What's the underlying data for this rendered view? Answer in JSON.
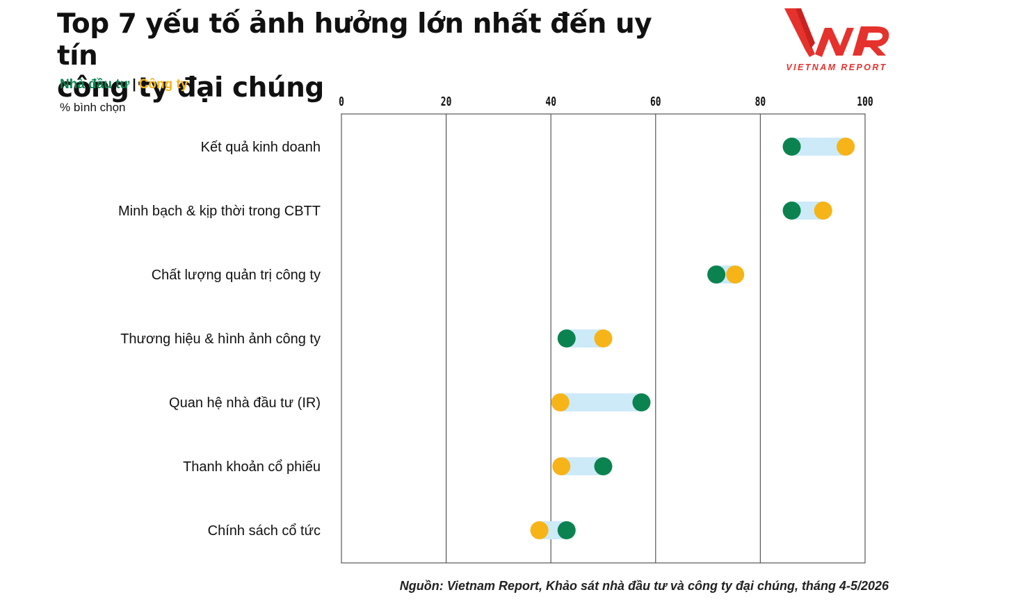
{
  "header": {
    "title_line1": "Top 7 yếu tố ảnh hưởng lớn nhất đến uy tín",
    "title_line2": "công ty đại chúng",
    "legend_investor": "Nhà đầu tư",
    "legend_separator": "|",
    "legend_company": "Công ty",
    "unit": "% bình chọn"
  },
  "logo": {
    "brand": "VNR",
    "tagline": "VIETNAM REPORT",
    "color": "#e5322d"
  },
  "source": "Nguồn: Vietnam Report, Khảo sát nhà đầu tư và công ty đại chúng, tháng 4-5/2026",
  "colors": {
    "investor": "#0b8350",
    "company": "#f7b418",
    "range_bar": "#cdeaf8"
  },
  "chart_data": {
    "type": "dumbbell",
    "xlim": [
      0,
      100
    ],
    "x_ticks": [
      0,
      20,
      40,
      60,
      80,
      100
    ],
    "grid": true,
    "categories": [
      "Kết quả kinh doanh",
      "Minh bạch & kịp thời trong CBTT",
      "Chất lượng quản trị công ty",
      "Thương hiệu & hình ảnh công ty",
      "Quan hệ nhà đầu tư (IR)",
      "Thanh khoản cổ phiếu",
      "Chính sách cổ tức"
    ],
    "series": [
      {
        "name": "Nhà đầu tư",
        "values": [
          86,
          86,
          71.6,
          43,
          57.3,
          50,
          43
        ]
      },
      {
        "name": "Công ty",
        "values": [
          96.3,
          92,
          75.2,
          50,
          41.8,
          42,
          37.8
        ]
      }
    ]
  }
}
